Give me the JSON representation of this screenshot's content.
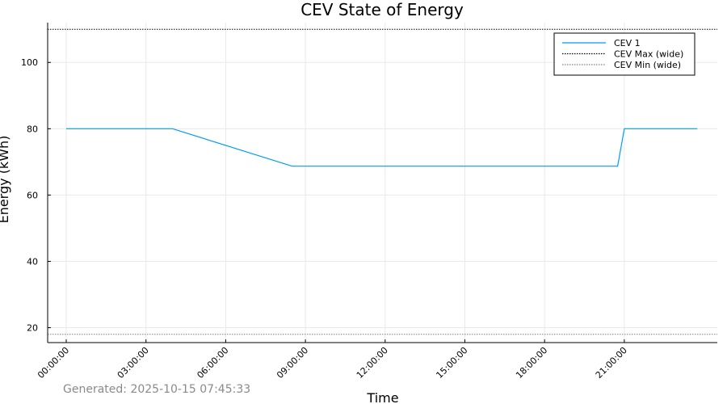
{
  "chart_data": {
    "type": "line",
    "title": "CEV State of Energy",
    "xlabel": "Time",
    "ylabel": "Energy (kWh)",
    "x_ticks": [
      "00:00:00",
      "03:00:00",
      "06:00:00",
      "09:00:00",
      "12:00:00",
      "15:00:00",
      "18:00:00",
      "21:00:00"
    ],
    "x_tick_hours": [
      0,
      3,
      6,
      9,
      12,
      15,
      18,
      21
    ],
    "y_ticks": [
      20,
      40,
      60,
      80,
      100
    ],
    "xlim_hours": [
      -0.7,
      24.5
    ],
    "ylim": [
      15.5,
      112
    ],
    "grid": true,
    "legend_position": "top-right",
    "series": [
      {
        "name": "CEV 1",
        "style": "solid",
        "color": "#009AFA",
        "x_hours": [
          0,
          4,
          8.5,
          20.75,
          21.0,
          23.75
        ],
        "values": [
          80,
          80,
          68.7,
          68.7,
          80,
          80
        ]
      }
    ],
    "reference_lines": [
      {
        "name": "CEV Max (wide)",
        "y": 110,
        "style": "dotted",
        "color": "#000000"
      },
      {
        "name": "CEV Min (wide)",
        "y": 18,
        "style": "dotted",
        "color": "#808080"
      }
    ]
  },
  "footer": {
    "generated": "Generated: 2025-10-15 07:45:33"
  }
}
